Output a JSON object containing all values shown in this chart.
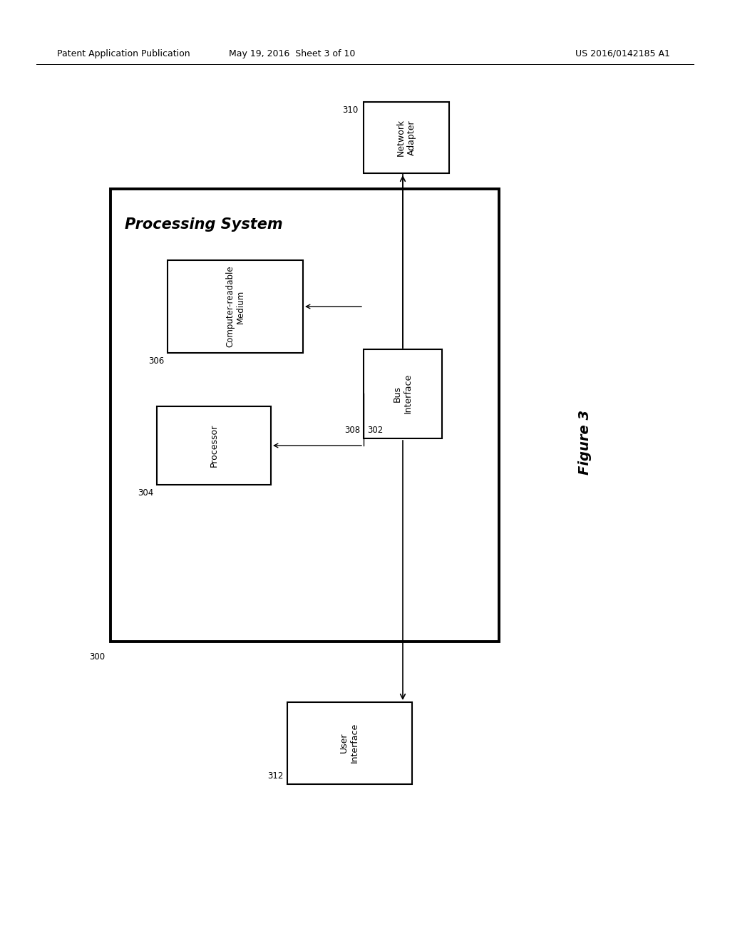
{
  "bg_color": "#ffffff",
  "header_left": "Patent Application Publication",
  "header_mid": "May 19, 2016  Sheet 3 of 10",
  "header_right": "US 2016/0142185 A1",
  "figure_label": "Figure 3",
  "processing_system_label": "Processing System",
  "network_adapter_label": "Network\nAdapter",
  "network_adapter_ref": "310",
  "bus_interface_label": "Bus\nInterface",
  "bus_interface_ref": "308",
  "computer_readable_label": "Computer-readable\nMedium",
  "computer_readable_ref": "306",
  "processor_label": "Processor",
  "processor_ref": "304",
  "bus_ref": "302",
  "user_interface_label": "User\nInterface",
  "user_interface_ref": "312",
  "ref300": "300"
}
